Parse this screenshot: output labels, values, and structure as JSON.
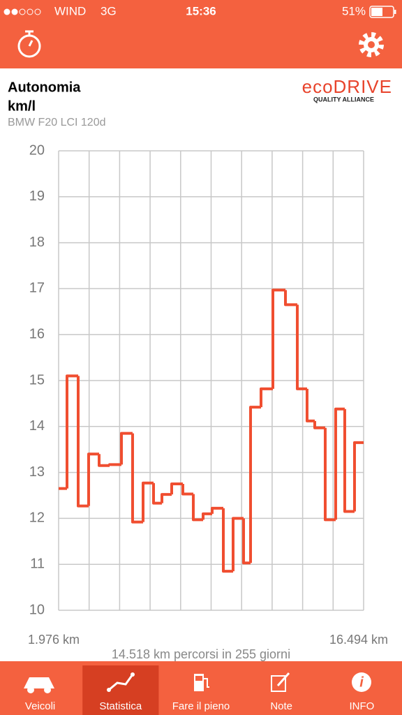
{
  "status_bar": {
    "carrier": "WIND",
    "network": "3G",
    "time": "15:36",
    "battery": "51%"
  },
  "logo": {
    "name": "ecoDRIVE",
    "tagline": "QUALITY ALLIANCE"
  },
  "chart_data": {
    "type": "step",
    "title": "Autonomia",
    "y_label": "km/l",
    "subtitle": "BMW F20 LCI 120d",
    "x": [
      1976,
      2375,
      2906,
      3404,
      3903,
      4401,
      4966,
      5497,
      5996,
      6494,
      6893,
      7358,
      7889,
      8387,
      8853,
      9284,
      9816,
      10281,
      10779,
      11112,
      11610,
      12175,
      12773,
      13337,
      13802,
      14168,
      14666,
      15164,
      15596,
      16061
    ],
    "values": [
      12.65,
      15.1,
      12.27,
      13.4,
      13.15,
      13.17,
      13.85,
      11.92,
      12.77,
      12.33,
      12.52,
      12.75,
      12.53,
      11.97,
      12.1,
      12.22,
      10.85,
      12.0,
      11.03,
      14.42,
      14.82,
      16.97,
      16.65,
      14.82,
      14.12,
      13.97,
      11.97,
      14.38,
      12.15,
      13.65
    ],
    "color": "#f04e30",
    "xlim": [
      1976,
      16494
    ],
    "xticks": [
      {
        "value": 1976,
        "label": "1.976 km"
      },
      {
        "value": 16494,
        "label": "16.494 km"
      }
    ],
    "x_gridlines": [
      1976,
      3428,
      4880,
      6331,
      7783,
      9235,
      10687,
      12139,
      13591,
      15042,
      16494
    ],
    "ylim": [
      10,
      20
    ],
    "yticks": [
      10,
      11,
      12,
      13,
      14,
      15,
      16,
      17,
      18,
      19,
      20
    ],
    "grid": true,
    "note": "14.518 km percorsi in 255 giorni"
  },
  "tabs": [
    "Veicoli",
    "Statistica",
    "Fare il pieno",
    "Note",
    "INFO"
  ],
  "active_tab": 1
}
